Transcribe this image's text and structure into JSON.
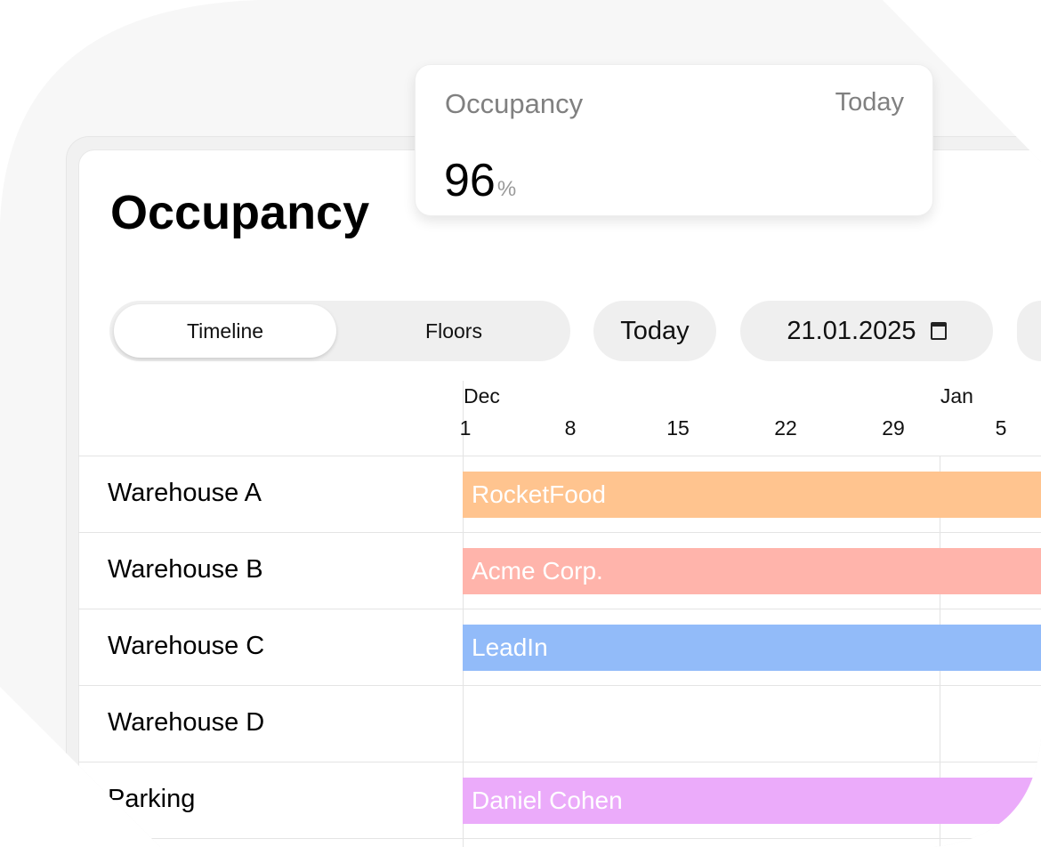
{
  "page_title": "Occupancy",
  "view_tabs": [
    {
      "label": "Timeline",
      "active": true
    },
    {
      "label": "Floors",
      "active": false
    }
  ],
  "today_button": "Today",
  "date_input": {
    "value": "21.01.2025",
    "icon": "calendar-icon"
  },
  "timeline": {
    "months": [
      {
        "label": "Dec",
        "day": 0
      },
      {
        "label": "Jan",
        "day": 31
      }
    ],
    "ticks": [
      {
        "label": "1",
        "day": 0
      },
      {
        "label": "8",
        "day": 7
      },
      {
        "label": "15",
        "day": 14
      },
      {
        "label": "22",
        "day": 21
      },
      {
        "label": "29",
        "day": 28
      },
      {
        "label": "5",
        "day": 35
      }
    ],
    "rows": [
      {
        "label": "Warehouse A",
        "booking": "RocketFood",
        "color": "#FFC48F"
      },
      {
        "label": "Warehouse B",
        "booking": "Acme Corp.",
        "color": "#FFB4AB"
      },
      {
        "label": "Warehouse C",
        "booking": "LeadIn",
        "color": "#92BBF9"
      },
      {
        "label": "Warehouse D",
        "booking": null,
        "color": null
      },
      {
        "label": "Parking",
        "booking": "Daniel Cohen",
        "color": "#EBABFA"
      }
    ]
  },
  "occupancy_card": {
    "label": "Occupancy",
    "period": "Today",
    "value": "96",
    "unit": "%"
  }
}
